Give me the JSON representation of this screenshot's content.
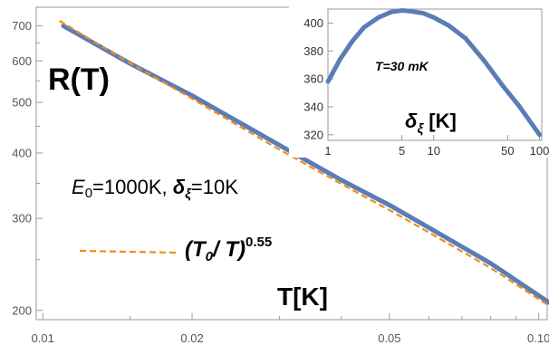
{
  "chart_data": [
    {
      "type": "line",
      "scale": "log-log",
      "xlabel": "T[K]",
      "ylabel": "R(T)",
      "xlim": [
        0.0097,
        0.104
      ],
      "ylim": [
        192,
        760
      ],
      "x_ticks": [
        {
          "value": 0.01,
          "label": "0.01"
        },
        {
          "value": 0.02,
          "label": "0.02"
        },
        {
          "value": 0.05,
          "label": "0.05"
        },
        {
          "value": 0.1,
          "label": "0.10"
        }
      ],
      "x_minor_ticks": [
        0.015,
        0.03,
        0.04,
        0.06,
        0.07,
        0.08,
        0.09
      ],
      "y_ticks": [
        {
          "value": 200,
          "label": "200"
        },
        {
          "value": 300,
          "label": "300"
        },
        {
          "value": 400,
          "label": "400"
        },
        {
          "value": 500,
          "label": "500"
        },
        {
          "value": 600,
          "label": "600"
        },
        {
          "value": 700,
          "label": "700"
        }
      ],
      "y_minor_ticks": [
        250,
        350,
        450,
        550,
        650
      ],
      "series": [
        {
          "style": "solid",
          "color": "#5a7db5",
          "x": [
            0.011,
            0.015,
            0.02,
            0.03,
            0.04,
            0.05,
            0.06,
            0.08,
            0.105
          ],
          "y": [
            700,
            593,
            515,
            414,
            355,
            318,
            288,
            246,
            207
          ]
        },
        {
          "name": "(T0/ T)^0.55",
          "style": "dashed",
          "color": "#f28c1a",
          "power": 0.55,
          "x": [
            0.0108,
            0.015,
            0.02,
            0.03,
            0.04,
            0.05,
            0.06,
            0.08,
            0.105
          ],
          "y": [
            716,
            594,
            508,
            406,
            349,
            311,
            282,
            241,
            204
          ]
        }
      ],
      "annotation": {
        "e0_symbol": "E",
        "e0_sub": "0",
        "e0_value": "=1000K, ",
        "delta_symbol": "δ",
        "delta_sub": "ξ",
        "delta_value": "=10K"
      },
      "legend": {
        "base": "(T",
        "sub": "0",
        "slash": "/ T)",
        "exponent": "0.55"
      }
    },
    {
      "type": "line",
      "scale": "log-x",
      "xlabel_symbol": "δ",
      "xlabel_sub": "ξ",
      "xlabel_unit": " [K]",
      "annotation": "T=30 mK",
      "xlim": [
        1,
        105
      ],
      "ylim": [
        316,
        410
      ],
      "x_ticks": [
        {
          "value": 1,
          "label": "1"
        },
        {
          "value": 5,
          "label": "5"
        },
        {
          "value": 10,
          "label": "10"
        },
        {
          "value": 50,
          "label": "50"
        },
        {
          "value": 100,
          "label": "100"
        }
      ],
      "y_ticks": [
        {
          "value": 320,
          "label": "320"
        },
        {
          "value": 340,
          "label": "340"
        },
        {
          "value": 360,
          "label": "360"
        },
        {
          "value": 380,
          "label": "380"
        },
        {
          "value": 400,
          "label": "400"
        }
      ],
      "series": [
        {
          "style": "solid",
          "color": "#5a7db5",
          "x": [
            1,
            1.3,
            1.7,
            2.2,
            3,
            4,
            5,
            6,
            8,
            10,
            14,
            20,
            30,
            45,
            65,
            100
          ],
          "y": [
            358,
            374,
            387,
            397,
            404,
            408,
            409,
            408.5,
            407,
            404,
            398,
            389,
            373,
            355,
            340,
            320
          ]
        }
      ]
    }
  ]
}
